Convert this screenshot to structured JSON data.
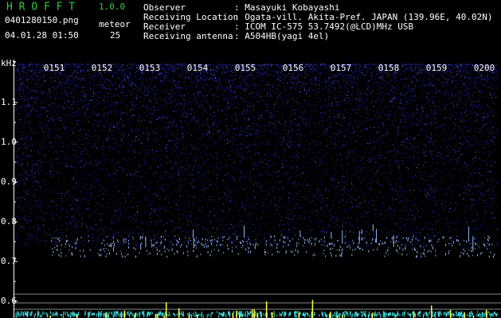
{
  "header": {
    "app": "H R O F F T",
    "version": "1.0.0",
    "filename": "0401280150.png",
    "meteor_label": "meteor",
    "meteor_count": "25",
    "datetime": "04.01.28 01:50"
  },
  "info": [
    {
      "label": "Observer",
      "value": ": Masayuki Kobayashi"
    },
    {
      "label": "Receiving Location",
      "value": ": Ogata-vill. Akita-Pref. JAPAN (139.96E, 40.02N)"
    },
    {
      "label": "Receiver",
      "value": ": ICOM IC-575 53.7492(@LCD)MHz USB"
    },
    {
      "label": "Receiving antenna",
      "value": ": A504HB(yagi 4el)"
    }
  ],
  "axis": {
    "unit": "kHz",
    "frequency_labels": [
      "1.1",
      "1.0",
      "0.9",
      "0.8",
      "0.7",
      "0.6"
    ],
    "time_labels": [
      "0151",
      "0152",
      "0153",
      "0154",
      "0155",
      "0156",
      "0157",
      "0158",
      "0159",
      "0200"
    ]
  }
}
